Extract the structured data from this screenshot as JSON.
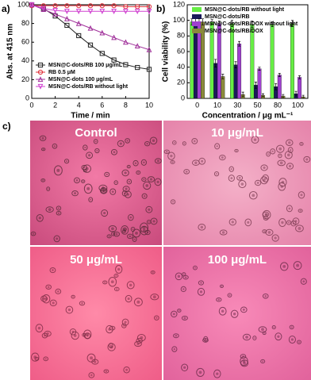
{
  "panel_labels": [
    "a)",
    "b)",
    "c)"
  ],
  "chart_data": [
    {
      "type": "line",
      "xlabel": "Time / min",
      "ylabel": "Abs. at 415 nm",
      "xlim": [
        0,
        10
      ],
      "xticks": [
        0,
        2,
        4,
        6,
        8,
        10
      ],
      "ylim": [
        0,
        100
      ],
      "yticks": [
        0,
        20,
        40,
        60,
        80,
        100
      ],
      "x": [
        0,
        1,
        2,
        3,
        4,
        5,
        6,
        7,
        8,
        9,
        10
      ],
      "series": [
        {
          "name": "MSN@C-dots/RB 100 μg/mL",
          "color": "#222222",
          "marker": "square",
          "values": [
            100,
            96,
            88,
            78,
            67,
            57,
            48,
            41,
            36,
            33,
            31
          ]
        },
        {
          "name": "RB 0.5 μM",
          "color": "#e0303a",
          "marker": "circle",
          "values": [
            99,
            99,
            99,
            99,
            99,
            99,
            99,
            99,
            98,
            98,
            98
          ]
        },
        {
          "name": "MSN@C-dots 100 μg/mL",
          "color": "#a0309a",
          "marker": "triangle-up",
          "values": [
            100,
            95,
            90,
            85,
            80,
            75,
            70,
            65,
            60,
            56,
            52
          ]
        },
        {
          "name": "MSN@C-dots/RB without light",
          "color": "#d040d0",
          "marker": "triangle-down",
          "values": [
            100,
            96,
            94,
            93,
            93,
            93,
            93,
            93,
            93,
            93,
            93
          ]
        }
      ],
      "legend": "lower-left"
    },
    {
      "type": "bar",
      "xlabel": "Concentration / μg mL⁻¹",
      "ylabel": "Cell viability (%)",
      "categories": [
        "0",
        "10",
        "30",
        "50",
        "80",
        "100"
      ],
      "ylim": [
        0,
        120
      ],
      "yticks": [
        0,
        20,
        40,
        60,
        80,
        100,
        120
      ],
      "series": [
        {
          "name": "MSN@C-dots/RB without light",
          "color": "#66ee44",
          "values": [
            98,
            98,
            96,
            95,
            95,
            96
          ],
          "errors": [
            4,
            3,
            4,
            4,
            3,
            4
          ]
        },
        {
          "name": "MSN@C-dots/RB",
          "color": "#1a1a5a",
          "values": [
            98,
            45,
            43,
            17,
            15,
            6
          ],
          "errors": [
            4,
            5,
            4,
            4,
            4,
            3
          ]
        },
        {
          "name": "MSN@C-dots/RB/DOX without light",
          "color": "#a040d0",
          "values": [
            98,
            96,
            70,
            38,
            30,
            27
          ],
          "errors": [
            4,
            3,
            3,
            2,
            2,
            2
          ]
        },
        {
          "name": "MSN@C-dots/RB/DOX",
          "color": "#8a8a3a",
          "values": [
            98,
            28,
            5,
            4,
            3,
            2
          ],
          "errors": [
            4,
            3,
            3,
            2,
            2,
            2
          ]
        }
      ],
      "legend": "upper-left"
    }
  ],
  "images": {
    "labels": [
      "Control",
      "10 μg/mL",
      "50 μg/mL",
      "100 μg/mL"
    ]
  }
}
